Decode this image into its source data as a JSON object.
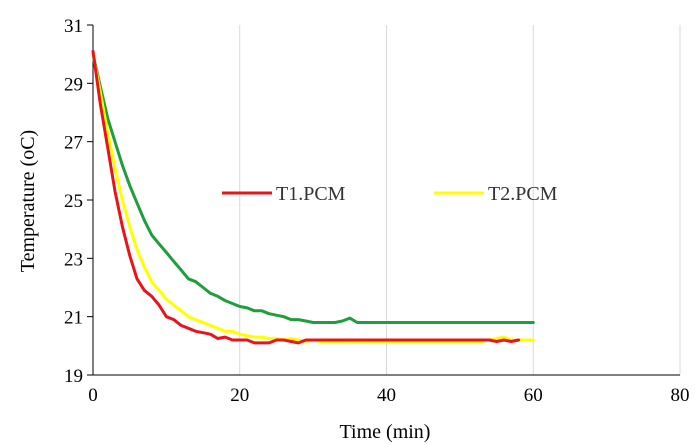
{
  "chart_data": {
    "type": "line",
    "title": "",
    "xlabel": "Time (min)",
    "ylabel": "Temperature (oC)",
    "xlim": [
      0,
      80
    ],
    "ylim": [
      19,
      31
    ],
    "x_ticks": [
      0,
      20,
      40,
      60,
      80
    ],
    "y_ticks": [
      19,
      21,
      23,
      25,
      27,
      29,
      31
    ],
    "grid": "vertical",
    "legend_position": "top-center",
    "series": [
      {
        "name": "T1.PCM",
        "color": "#e8141b",
        "points": [
          [
            0,
            30.1
          ],
          [
            1,
            28.3
          ],
          [
            2,
            26.8
          ],
          [
            3,
            25.3
          ],
          [
            4,
            24.1
          ],
          [
            5,
            23.1
          ],
          [
            6,
            22.3
          ],
          [
            7,
            21.9
          ],
          [
            8,
            21.7
          ],
          [
            9,
            21.4
          ],
          [
            10,
            21.0
          ],
          [
            11,
            20.9
          ],
          [
            12,
            20.7
          ],
          [
            13,
            20.6
          ],
          [
            14,
            20.5
          ],
          [
            15,
            20.45
          ],
          [
            16,
            20.4
          ],
          [
            17,
            20.25
          ],
          [
            18,
            20.3
          ],
          [
            19,
            20.2
          ],
          [
            20,
            20.2
          ],
          [
            21,
            20.2
          ],
          [
            22,
            20.1
          ],
          [
            23,
            20.1
          ],
          [
            24,
            20.1
          ],
          [
            25,
            20.2
          ],
          [
            26,
            20.2
          ],
          [
            27,
            20.15
          ],
          [
            28,
            20.1
          ],
          [
            29,
            20.2
          ],
          [
            30,
            20.2
          ],
          [
            35,
            20.2
          ],
          [
            40,
            20.2
          ],
          [
            45,
            20.2
          ],
          [
            50,
            20.2
          ],
          [
            54,
            20.2
          ],
          [
            55,
            20.15
          ],
          [
            56,
            20.2
          ],
          [
            57,
            20.15
          ],
          [
            58,
            20.2
          ]
        ]
      },
      {
        "name": "T2.PCM",
        "color": "#ffff00",
        "points": [
          [
            0,
            30.0
          ],
          [
            1,
            28.7
          ],
          [
            2,
            27.3
          ],
          [
            3,
            26.1
          ],
          [
            4,
            25.0
          ],
          [
            5,
            24.1
          ],
          [
            6,
            23.3
          ],
          [
            7,
            22.7
          ],
          [
            8,
            22.2
          ],
          [
            9,
            21.9
          ],
          [
            10,
            21.6
          ],
          [
            11,
            21.4
          ],
          [
            12,
            21.2
          ],
          [
            13,
            21.0
          ],
          [
            14,
            20.9
          ],
          [
            15,
            20.8
          ],
          [
            16,
            20.7
          ],
          [
            17,
            20.6
          ],
          [
            18,
            20.5
          ],
          [
            19,
            20.5
          ],
          [
            20,
            20.4
          ],
          [
            21,
            20.35
          ],
          [
            22,
            20.3
          ],
          [
            23,
            20.3
          ],
          [
            24,
            20.25
          ],
          [
            25,
            20.25
          ],
          [
            26,
            20.2
          ],
          [
            27,
            20.25
          ],
          [
            28,
            20.2
          ],
          [
            29,
            20.15
          ],
          [
            30,
            20.2
          ],
          [
            31,
            20.15
          ],
          [
            35,
            20.15
          ],
          [
            40,
            20.15
          ],
          [
            45,
            20.15
          ],
          [
            50,
            20.15
          ],
          [
            53,
            20.15
          ],
          [
            54,
            20.2
          ],
          [
            55,
            20.25
          ],
          [
            56,
            20.3
          ],
          [
            57,
            20.2
          ],
          [
            58,
            20.2
          ],
          [
            60,
            20.2
          ]
        ]
      },
      {
        "name": "",
        "color": "#1e9e3c",
        "points": [
          [
            0,
            30.0
          ],
          [
            1,
            28.9
          ],
          [
            2,
            27.8
          ],
          [
            3,
            27.0
          ],
          [
            4,
            26.2
          ],
          [
            5,
            25.5
          ],
          [
            6,
            24.9
          ],
          [
            7,
            24.3
          ],
          [
            8,
            23.8
          ],
          [
            9,
            23.5
          ],
          [
            10,
            23.2
          ],
          [
            11,
            22.9
          ],
          [
            12,
            22.6
          ],
          [
            13,
            22.3
          ],
          [
            14,
            22.2
          ],
          [
            15,
            22.0
          ],
          [
            16,
            21.8
          ],
          [
            17,
            21.7
          ],
          [
            18,
            21.55
          ],
          [
            19,
            21.45
          ],
          [
            20,
            21.35
          ],
          [
            21,
            21.3
          ],
          [
            22,
            21.2
          ],
          [
            23,
            21.2
          ],
          [
            24,
            21.1
          ],
          [
            25,
            21.05
          ],
          [
            26,
            21.0
          ],
          [
            27,
            20.9
          ],
          [
            28,
            20.9
          ],
          [
            29,
            20.85
          ],
          [
            30,
            20.8
          ],
          [
            33,
            20.8
          ],
          [
            34,
            20.85
          ],
          [
            35,
            20.95
          ],
          [
            36,
            20.8
          ],
          [
            40,
            20.8
          ],
          [
            45,
            20.8
          ],
          [
            50,
            20.8
          ],
          [
            55,
            20.8
          ],
          [
            60,
            20.8
          ]
        ]
      }
    ]
  }
}
